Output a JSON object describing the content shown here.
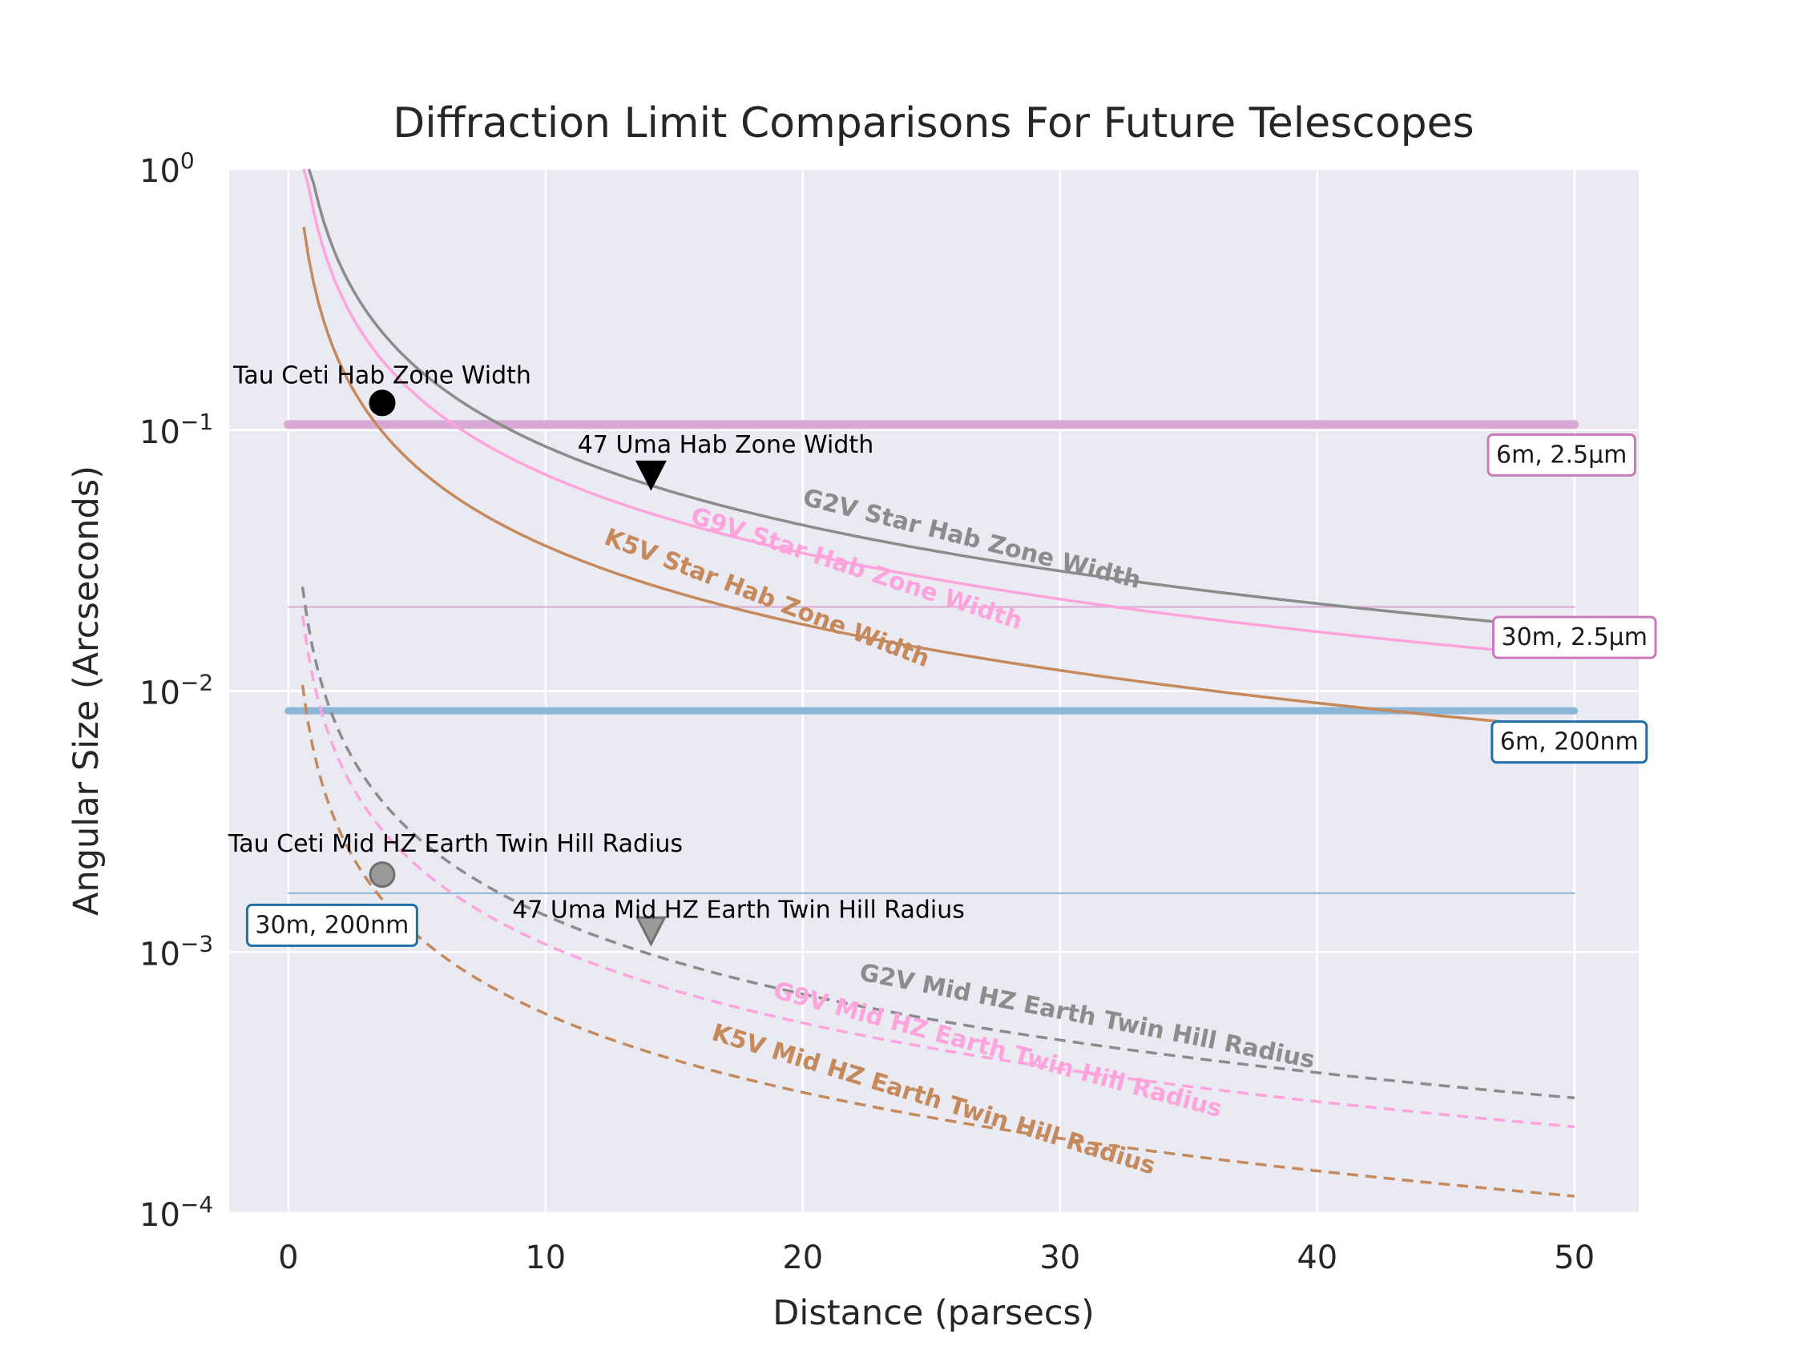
{
  "chart_data": {
    "type": "line",
    "title": "Diffraction Limit Comparisons For Future Telescopes",
    "xlabel": "Distance (parsecs)",
    "ylabel": "Angular Size (Arcseconds)",
    "xlim": [
      -2.3,
      52.5
    ],
    "ylim": [
      0.0001,
      1
    ],
    "yscale": "log",
    "grid": true,
    "x_ticks": [
      0,
      10,
      20,
      30,
      40,
      50
    ],
    "x_tick_labels": [
      "0",
      "10",
      "20",
      "30",
      "40",
      "50"
    ],
    "y_ticks": [
      {
        "value": 1,
        "base": "10",
        "exp": "0"
      },
      {
        "value": 0.1,
        "base": "10",
        "exp": "−1"
      },
      {
        "value": 0.01,
        "base": "10",
        "exp": "−2"
      },
      {
        "value": 0.001,
        "base": "10",
        "exp": "−3"
      },
      {
        "value": 0.0001,
        "base": "10",
        "exp": "−4"
      }
    ],
    "reference_lines": [
      {
        "label": "6m, 2.5μm",
        "value": 0.105,
        "color": "#d8a9d3",
        "edge": "#c97ab8",
        "width": 11,
        "label_at": [
          49.5,
          0.0805
        ]
      },
      {
        "label": "30m, 2.5μm",
        "value": 0.021,
        "color": "#d8a9d3",
        "edge": "#c97ab8",
        "width": 2,
        "label_at": [
          50,
          0.0161
        ]
      },
      {
        "label": "6m, 200nm",
        "value": 0.0084,
        "color": "#8cb6d8",
        "edge": "#1f6fa8",
        "width": 9,
        "label_at": [
          49.8,
          0.0064
        ]
      },
      {
        "label": "30m, 200nm",
        "value": 0.00168,
        "color": "#8cb6d8",
        "edge": "#1f6fa8",
        "width": 2,
        "label_at": [
          1.7,
          0.00127
        ]
      }
    ],
    "series": [
      {
        "name": "G2V Star Hab Zone Width",
        "k": 0.865,
        "x_start": 0.8,
        "x_end": 50,
        "color": "#8c8c8c",
        "dash": false,
        "label_at": [
          26.5,
          0.0358
        ],
        "label_angle": 14
      },
      {
        "name": "G9V Star Hab Zone Width",
        "k": 0.675,
        "x_start": 0.6,
        "x_end": 50,
        "color": "#ffa3dd",
        "dash": false,
        "label_at": [
          22,
          0.0276
        ],
        "label_angle": 18
      },
      {
        "name": "K5V Star Hab Zone Width",
        "k": 0.36,
        "x_start": 0.6,
        "x_end": 50,
        "color": "#c5895b",
        "dash": false,
        "label_at": [
          18.5,
          0.0213
        ],
        "label_angle": 21
      },
      {
        "name": "G2V Mid HZ Earth Twin Hill Radius",
        "k": 0.0138,
        "x_start": 0.55,
        "x_end": 50,
        "color": "#8c8c8c",
        "dash": true,
        "label_at": [
          31,
          0.00053
        ],
        "label_angle": 11
      },
      {
        "name": "G9V Mid HZ Earth Twin Hill Radius",
        "k": 0.0107,
        "x_start": 0.55,
        "x_end": 50,
        "color": "#ffa3dd",
        "dash": true,
        "label_at": [
          27.5,
          0.000395
        ],
        "label_angle": 15
      },
      {
        "name": "K5V Mid HZ Earth Twin Hill Radius",
        "k": 0.0058,
        "x_start": 0.55,
        "x_end": 50,
        "color": "#c5895b",
        "dash": true,
        "label_at": [
          25,
          0.000255
        ],
        "label_angle": 17
      }
    ],
    "markers": [
      {
        "name": "Tau Ceti Hab Zone Width",
        "x": 3.65,
        "y": 0.127,
        "shape": "circle",
        "fill": "#000000",
        "edge": "#000000",
        "opacity": 1,
        "label_at": [
          3.65,
          0.162
        ]
      },
      {
        "name": "47 Uma Hab Zone Width",
        "x": 14.1,
        "y": 0.0675,
        "shape": "triangle-down",
        "fill": "#000000",
        "edge": "#000000",
        "opacity": 1,
        "label_at": [
          17,
          0.088
        ]
      },
      {
        "name": "Tau Ceti Mid HZ Earth Twin Hill Radius",
        "x": 3.65,
        "y": 0.00198,
        "shape": "circle",
        "fill": "#8c8c8c",
        "edge": "#6f6f6f",
        "opacity": 0.85,
        "label_at": [
          6.5,
          0.0026
        ]
      },
      {
        "name": "47 Uma Mid HZ Earth Twin Hill Radius",
        "x": 14.1,
        "y": 0.00121,
        "shape": "triangle-down",
        "fill": "#8c8c8c",
        "edge": "#6f6f6f",
        "opacity": 0.85,
        "label_at": [
          17.5,
          0.00145
        ]
      }
    ]
  }
}
